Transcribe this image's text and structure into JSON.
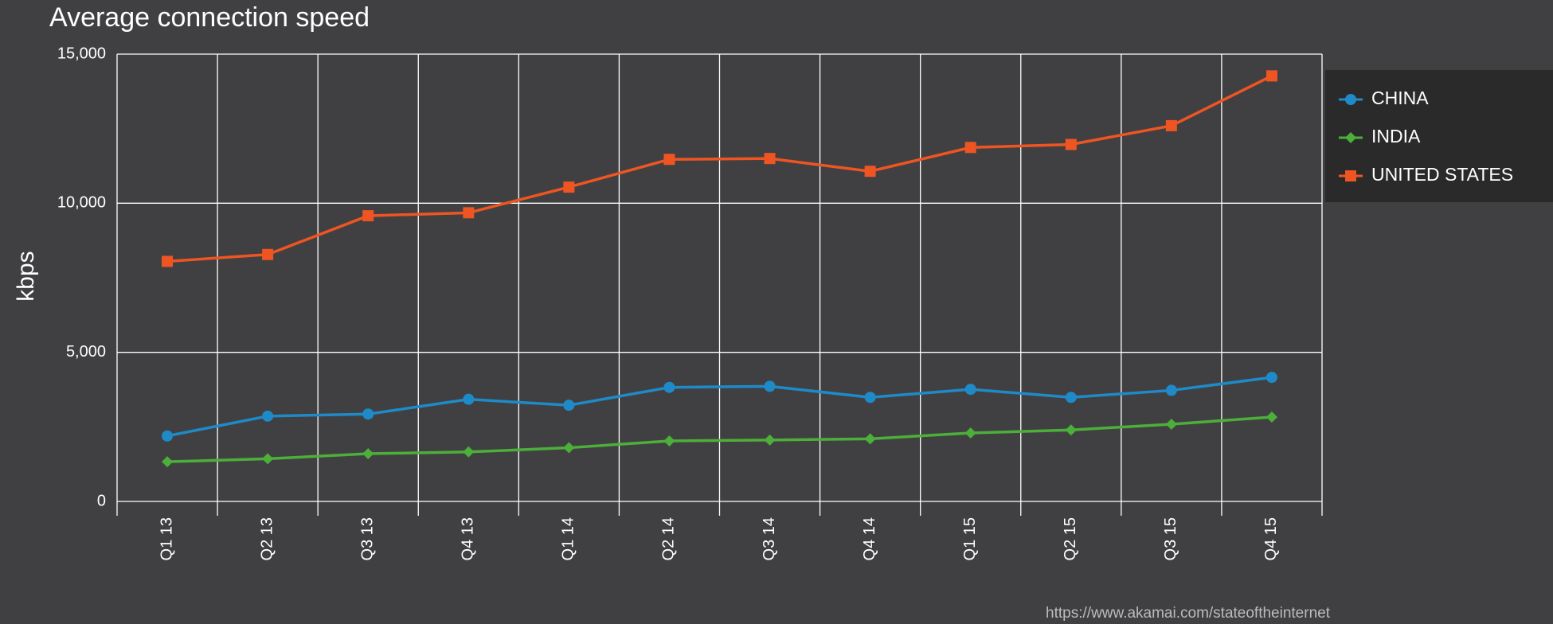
{
  "chart_data": {
    "type": "line",
    "title": "Average connection speed",
    "y_label": "kbps",
    "categories": [
      "Q1 13",
      "Q2 13",
      "Q3 13",
      "Q4 13",
      "Q1 14",
      "Q2 14",
      "Q3 14",
      "Q4 14",
      "Q1 15",
      "Q2 15",
      "Q3 15",
      "Q4 15"
    ],
    "series": [
      {
        "name": "CHINA",
        "color": "#1f8ac8",
        "marker": "circle",
        "values": [
          2195,
          2860,
          2930,
          3425,
          3225,
          3825,
          3860,
          3490,
          3760,
          3490,
          3725,
          4160
        ]
      },
      {
        "name": "INDIA",
        "color": "#4caf3a",
        "marker": "diamond",
        "values": [
          1330,
          1430,
          1600,
          1660,
          1800,
          2030,
          2060,
          2100,
          2295,
          2395,
          2590,
          2830
        ]
      },
      {
        "name": "UNITED STATES",
        "color": "#ee5522",
        "marker": "square",
        "values": [
          8050,
          8280,
          9580,
          9680,
          10540,
          11470,
          11500,
          11070,
          11870,
          11970,
          12600,
          14270
        ]
      }
    ],
    "ylim": [
      0,
      15000
    ],
    "yticks": [
      0,
      {
        "value": 5000,
        "label": "5,000"
      },
      {
        "value": 10000,
        "label": "10,000"
      },
      {
        "value": 15000,
        "label": "15,000"
      }
    ],
    "grid": true,
    "legend": "right",
    "source": "https://www.akamai.com/stateoftheinternet"
  }
}
